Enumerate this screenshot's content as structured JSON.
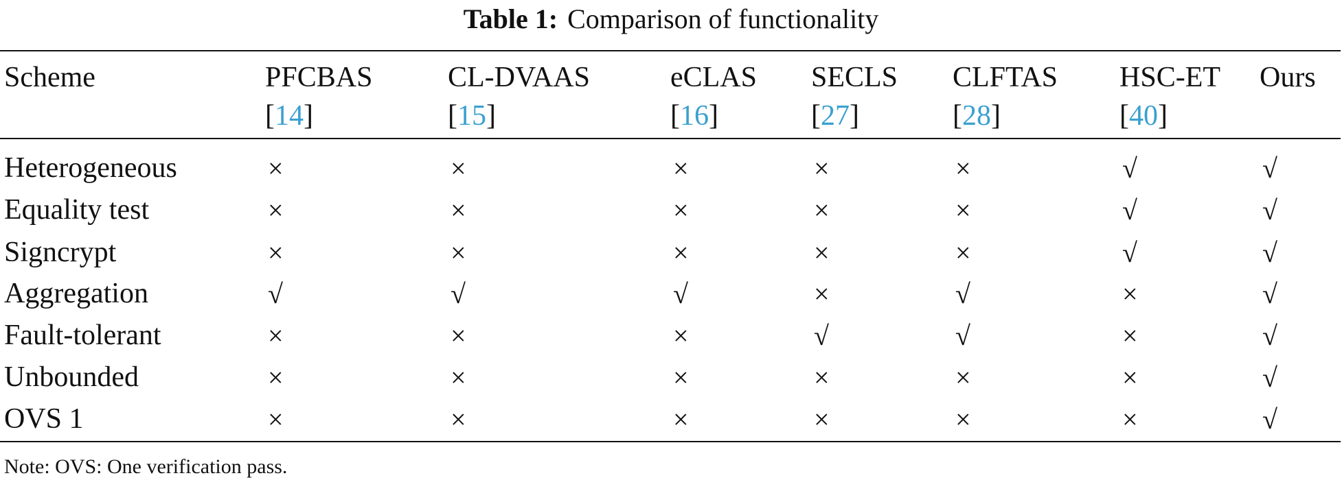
{
  "caption": {
    "label": "Table 1:",
    "text": "Comparison of functionality"
  },
  "table": {
    "header": [
      {
        "name": "Scheme"
      },
      {
        "name": "PFCBAS",
        "ref": [
          "[",
          "14",
          "]"
        ]
      },
      {
        "name": "CL-DVAAS",
        "ref": [
          "[",
          "15",
          "]"
        ]
      },
      {
        "name": "eCLAS",
        "ref": [
          "[",
          "16",
          "]"
        ]
      },
      {
        "name": "SECLS",
        "ref": [
          "[",
          "27",
          "]"
        ]
      },
      {
        "name": "CLFTAS",
        "ref": [
          "[",
          "28",
          "]"
        ]
      },
      {
        "name": "HSC-ET",
        "ref": [
          "[",
          "40",
          "]"
        ]
      },
      {
        "name": "Ours"
      }
    ],
    "rows": [
      [
        "Heterogeneous",
        "×",
        "×",
        "×",
        "×",
        "×",
        "√",
        "√"
      ],
      [
        "Equality test",
        "×",
        "×",
        "×",
        "×",
        "×",
        "√",
        "√"
      ],
      [
        "Signcrypt",
        "×",
        "×",
        "×",
        "×",
        "×",
        "√",
        "√"
      ],
      [
        "Aggregation",
        "√",
        "√",
        "√",
        "×",
        "√",
        "×",
        "√"
      ],
      [
        "Fault-tolerant",
        "×",
        "×",
        "×",
        "√",
        "√",
        "×",
        "√"
      ],
      [
        "Unbounded",
        "×",
        "×",
        "×",
        "×",
        "×",
        "×",
        "√"
      ],
      [
        "OVS 1",
        "×",
        "×",
        "×",
        "×",
        "×",
        "×",
        "√"
      ]
    ]
  },
  "note": "Note: OVS: One verification pass."
}
